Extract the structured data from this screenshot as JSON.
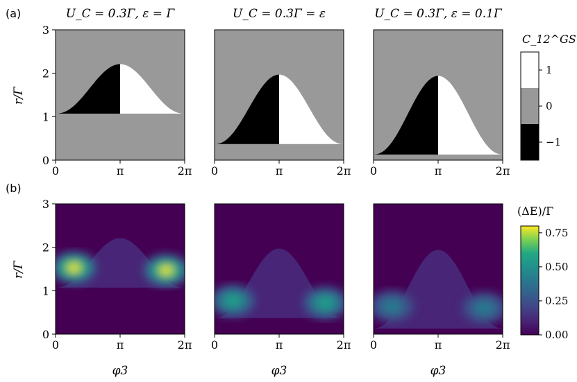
{
  "chart_data": {
    "type": "heatmap",
    "panel_labels": [
      "(a)",
      "(b)"
    ],
    "titles": [
      "U_C = 0.3Γ, ε = Γ",
      "U_C = 0.3Γ = ε",
      "U_C = 0.3Γ, ε = 0.1Γ"
    ],
    "xlabel": "φ3",
    "ylabel": "r/Γ",
    "xlim": [
      0,
      6.2832
    ],
    "ylim": [
      0,
      3
    ],
    "xticks": [
      0,
      3.1416,
      6.2832
    ],
    "xtick_labels": [
      "0",
      "π",
      "2π"
    ],
    "yticks": [
      0,
      1,
      2,
      3
    ],
    "ytick_labels": [
      "0",
      "1",
      "2",
      "3"
    ],
    "regions": [
      {
        "r_min": 1.07,
        "r_peak": 2.21,
        "left_peak": 1.53,
        "right_peak": 1.47
      },
      {
        "r_min": 0.37,
        "r_peak": 1.97,
        "left_peak": 0.77,
        "right_peak": 0.72
      },
      {
        "r_min": 0.13,
        "r_peak": 1.94,
        "left_peak": 0.64,
        "right_peak": 0.6
      }
    ],
    "row_a": {
      "colorbar_label": "C_12^GS",
      "levels": [
        -1,
        0,
        1
      ],
      "level_colors": [
        "#000000",
        "#999999",
        "#ffffff"
      ],
      "colorbar_ticks": [
        "−1",
        "0",
        "1"
      ]
    },
    "row_b": {
      "colorbar_label": "(ΔE)/Γ",
      "peak_values": [
        0.78,
        0.57,
        0.42
      ],
      "vmin": 0.0,
      "vmax": 0.8,
      "colorbar_ticks": [
        "0.00",
        "0.25",
        "0.50",
        "0.75"
      ],
      "colormap": "viridis"
    }
  }
}
